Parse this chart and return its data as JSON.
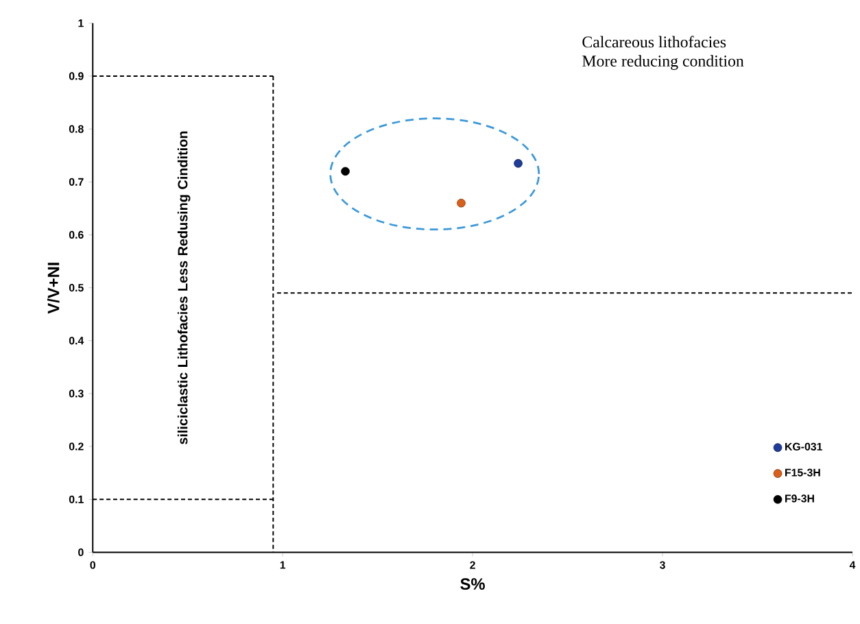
{
  "chart_data": {
    "type": "scatter",
    "xlabel": "S%",
    "ylabel": "V/V+NI",
    "xlim": [
      0,
      4
    ],
    "ylim": [
      0,
      1
    ],
    "xticks": [
      0,
      1,
      2,
      3,
      4
    ],
    "yticks": [
      0,
      0.1,
      0.2,
      0.3,
      0.4,
      0.5,
      0.6,
      0.7,
      0.8,
      0.9,
      1
    ],
    "grid": false,
    "legend": "bottom right",
    "series": [
      {
        "name": "KG-031",
        "marker": "circle",
        "color": "#1f3c99",
        "x": [
          2.24
        ],
        "values": [
          0.735
        ]
      },
      {
        "name": "F15-3H",
        "marker": "circle",
        "color": "#d95f1a",
        "x": [
          1.94
        ],
        "values": [
          0.66
        ]
      },
      {
        "name": "F9-3H",
        "marker": "circle",
        "color": "#000000",
        "x": [
          1.33
        ],
        "values": [
          0.72
        ]
      },
      {
        "type": "line",
        "marker": "none",
        "line_style": "dashed",
        "color": "#000000",
        "x": [
          0,
          0.95
        ],
        "values": [
          0.9,
          0.9
        ]
      },
      {
        "type": "line",
        "marker": "none",
        "line_style": "dashed",
        "color": "#000000",
        "x": [
          0.95,
          0.95
        ],
        "values": [
          0.9,
          0
        ]
      },
      {
        "type": "line",
        "marker": "none",
        "line_style": "dashed",
        "color": "#000000",
        "x": [
          0,
          0.95
        ],
        "values": [
          0.1,
          0.1
        ]
      },
      {
        "type": "line",
        "marker": "none",
        "line_style": "dashed",
        "color": "#000000",
        "x": [
          0.97,
          4
        ],
        "values": [
          0.49,
          0.49
        ]
      }
    ],
    "annotations": [
      "Calcareous lithofacies",
      "More reducing condition",
      "siliciclastic Lithofacies Less Redusing Cindition"
    ]
  }
}
